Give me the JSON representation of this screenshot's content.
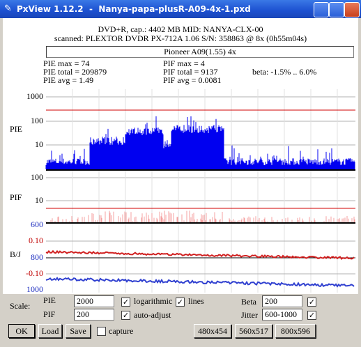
{
  "window": {
    "title": "PxView 1.12.2  -  Nanya-papa-plusR-A09-4x-1.pxd"
  },
  "header": {
    "disc": "DVD+R, cap.: 4402 MB MID: NANYA-CLX-00",
    "scanned": "scanned: PLEXTOR DVDR PX-712A 1.06 S/N: 358863 @ 8x (0h55m04s)",
    "drive": "Pioneer A09(1.55) 4x"
  },
  "stats": {
    "pie_max": "PIE max = 74",
    "pie_total": "PIE total = 209879",
    "pie_avg": "PIE avg = 1.49",
    "pif_max": "PIF max = 4",
    "pif_total": "PIF total = 9137",
    "pif_avg": "PIF avg = 0.0081",
    "beta": "beta: -1.5% .. 6.0%"
  },
  "panels": {
    "pie": {
      "label": "PIE",
      "ticks": [
        "1000",
        "100",
        "10"
      ]
    },
    "pif": {
      "label": "PIF",
      "ticks": [
        "100",
        "10"
      ]
    },
    "bj": {
      "label": "B/J",
      "jitter_ticks": [
        "600",
        "800",
        "1000"
      ],
      "beta_ticks": [
        "0.10",
        "-0.10"
      ]
    }
  },
  "controls": {
    "scale": "Scale:",
    "pie": "PIE",
    "pie_value": "2000",
    "pif": "PIF",
    "pif_value": "200",
    "logarithmic": "logarithmic",
    "lines": "lines",
    "auto_adjust": "auto-adjust",
    "beta": "Beta",
    "beta_value": "200",
    "jitter": "Jitter",
    "jitter_value": "600-1000",
    "ok": "OK",
    "load": "Load",
    "save": "Save",
    "capture": "capture",
    "size1": "480x454",
    "size2": "560x517",
    "size3": "800x596"
  }
}
